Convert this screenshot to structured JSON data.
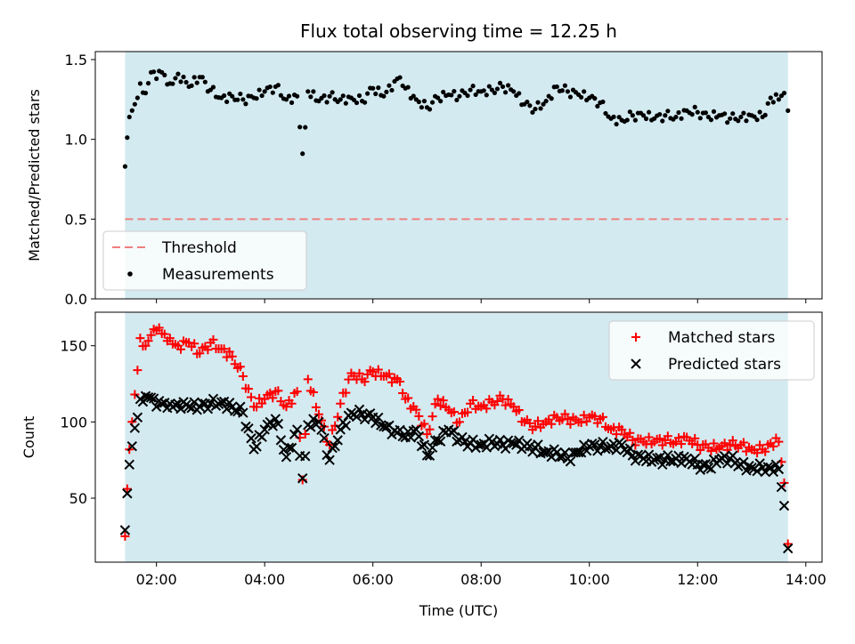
{
  "chart_data": {
    "title": "Flux total observing time = 12.25 h",
    "xlabel": "Time (UTC)",
    "x_ticks": [
      "02:00",
      "04:00",
      "06:00",
      "08:00",
      "10:00",
      "12:00",
      "14:00"
    ],
    "x_range_hours": [
      0.87,
      14.3
    ],
    "observing_window_hours": [
      1.42,
      13.67
    ],
    "colors": {
      "shade": "#d3eaf0",
      "matched": "#ff0000",
      "predicted": "#000000",
      "threshold": "#f08080",
      "measurements": "#000000"
    },
    "panels": [
      {
        "type": "scatter",
        "ylabel": "Matched/Predicted stars",
        "ylim": [
          0,
          1.55
        ],
        "y_ticks": [
          "0.0",
          "0.5",
          "1.0",
          "1.5"
        ],
        "legend_position": "lower-left",
        "threshold": 0.5,
        "legend": [
          {
            "label": "Threshold",
            "marker": "dashed-line"
          },
          {
            "label": "Measurements",
            "marker": "dot"
          }
        ],
        "series": [
          {
            "name": "Measurements",
            "anchors": [
              [
                1.42,
                0.83
              ],
              [
                1.5,
                1.14
              ],
              [
                1.6,
                1.22
              ],
              [
                1.7,
                1.35
              ],
              [
                1.8,
                1.29
              ],
              [
                1.9,
                1.42
              ],
              [
                2.0,
                1.38
              ],
              [
                2.1,
                1.42
              ],
              [
                2.25,
                1.35
              ],
              [
                2.4,
                1.41
              ],
              [
                2.6,
                1.33
              ],
              [
                2.8,
                1.39
              ],
              [
                3.0,
                1.31
              ],
              [
                3.2,
                1.26
              ],
              [
                3.4,
                1.27
              ],
              [
                3.6,
                1.25
              ],
              [
                3.8,
                1.26
              ],
              [
                4.0,
                1.3
              ],
              [
                4.2,
                1.33
              ],
              [
                4.4,
                1.25
              ],
              [
                4.6,
                1.27
              ],
              [
                4.7,
                0.91
              ],
              [
                4.8,
                1.3
              ],
              [
                5.0,
                1.24
              ],
              [
                5.2,
                1.27
              ],
              [
                5.4,
                1.25
              ],
              [
                5.6,
                1.26
              ],
              [
                5.8,
                1.24
              ],
              [
                6.0,
                1.32
              ],
              [
                6.2,
                1.27
              ],
              [
                6.45,
                1.38
              ],
              [
                6.6,
                1.32
              ],
              [
                6.8,
                1.25
              ],
              [
                7.0,
                1.2
              ],
              [
                7.2,
                1.26
              ],
              [
                7.4,
                1.28
              ],
              [
                7.6,
                1.27
              ],
              [
                7.8,
                1.31
              ],
              [
                8.0,
                1.3
              ],
              [
                8.2,
                1.31
              ],
              [
                8.4,
                1.33
              ],
              [
                8.6,
                1.3
              ],
              [
                8.8,
                1.22
              ],
              [
                9.0,
                1.19
              ],
              [
                9.2,
                1.24
              ],
              [
                9.4,
                1.33
              ],
              [
                9.6,
                1.3
              ],
              [
                9.8,
                1.28
              ],
              [
                10.0,
                1.26
              ],
              [
                10.2,
                1.23
              ],
              [
                10.4,
                1.13
              ],
              [
                10.6,
                1.12
              ],
              [
                10.8,
                1.15
              ],
              [
                11.0,
                1.15
              ],
              [
                11.2,
                1.13
              ],
              [
                11.4,
                1.15
              ],
              [
                11.6,
                1.14
              ],
              [
                11.8,
                1.18
              ],
              [
                12.0,
                1.17
              ],
              [
                12.2,
                1.14
              ],
              [
                12.4,
                1.15
              ],
              [
                12.6,
                1.13
              ],
              [
                12.8,
                1.14
              ],
              [
                13.0,
                1.15
              ],
              [
                13.2,
                1.14
              ],
              [
                13.35,
                1.26
              ],
              [
                13.5,
                1.25
              ],
              [
                13.6,
                1.29
              ],
              [
                13.67,
                1.18
              ]
            ]
          }
        ]
      },
      {
        "type": "scatter",
        "ylabel": "Count",
        "ylim": [
          8,
          172
        ],
        "y_ticks": [
          "50",
          "100",
          "150"
        ],
        "legend_position": "upper-right",
        "legend": [
          {
            "label": "Matched stars",
            "marker": "plus"
          },
          {
            "label": "Predicted stars",
            "marker": "x"
          }
        ],
        "series": [
          {
            "name": "Matched stars",
            "anchors": [
              [
                1.42,
                25
              ],
              [
                1.5,
                82
              ],
              [
                1.6,
                118
              ],
              [
                1.7,
                155
              ],
              [
                1.8,
                150
              ],
              [
                1.9,
                157
              ],
              [
                2.0,
                160
              ],
              [
                2.1,
                158
              ],
              [
                2.25,
                155
              ],
              [
                2.4,
                150
              ],
              [
                2.6,
                152
              ],
              [
                2.8,
                145
              ],
              [
                3.0,
                152
              ],
              [
                3.2,
                148
              ],
              [
                3.4,
                143
              ],
              [
                3.6,
                130
              ],
              [
                3.8,
                110
              ],
              [
                4.0,
                115
              ],
              [
                4.2,
                120
              ],
              [
                4.4,
                110
              ],
              [
                4.6,
                120
              ],
              [
                4.7,
                62
              ],
              [
                4.8,
                128
              ],
              [
                5.0,
                105
              ],
              [
                5.2,
                85
              ],
              [
                5.4,
                112
              ],
              [
                5.6,
                132
              ],
              [
                5.8,
                128
              ],
              [
                6.0,
                133
              ],
              [
                6.2,
                130
              ],
              [
                6.45,
                128
              ],
              [
                6.6,
                115
              ],
              [
                6.8,
                108
              ],
              [
                7.0,
                92
              ],
              [
                7.2,
                115
              ],
              [
                7.4,
                108
              ],
              [
                7.6,
                100
              ],
              [
                7.8,
                112
              ],
              [
                8.0,
                110
              ],
              [
                8.2,
                113
              ],
              [
                8.4,
                115
              ],
              [
                8.6,
                110
              ],
              [
                8.8,
                100
              ],
              [
                9.0,
                97
              ],
              [
                9.2,
                100
              ],
              [
                9.4,
                103
              ],
              [
                9.6,
                102
              ],
              [
                9.8,
                100
              ],
              [
                10.0,
                103
              ],
              [
                10.2,
                102
              ],
              [
                10.4,
                95
              ],
              [
                10.6,
                95
              ],
              [
                10.8,
                88
              ],
              [
                11.0,
                87
              ],
              [
                11.2,
                87
              ],
              [
                11.4,
                88
              ],
              [
                11.6,
                87
              ],
              [
                11.8,
                90
              ],
              [
                12.0,
                85
              ],
              [
                12.2,
                83
              ],
              [
                12.4,
                83
              ],
              [
                12.6,
                85
              ],
              [
                12.8,
                85
              ],
              [
                13.0,
                82
              ],
              [
                13.2,
                82
              ],
              [
                13.35,
                86
              ],
              [
                13.5,
                87
              ],
              [
                13.6,
                60
              ],
              [
                13.67,
                20
              ]
            ]
          },
          {
            "name": "Predicted stars",
            "anchors": [
              [
                1.42,
                29
              ],
              [
                1.5,
                72
              ],
              [
                1.6,
                96
              ],
              [
                1.7,
                115
              ],
              [
                1.8,
                117
              ],
              [
                1.9,
                116
              ],
              [
                2.0,
                110
              ],
              [
                2.1,
                112
              ],
              [
                2.25,
                112
              ],
              [
                2.4,
                112
              ],
              [
                2.6,
                110
              ],
              [
                2.8,
                110
              ],
              [
                3.0,
                112
              ],
              [
                3.2,
                113
              ],
              [
                3.4,
                110
              ],
              [
                3.6,
                106
              ],
              [
                3.8,
                82
              ],
              [
                4.0,
                95
              ],
              [
                4.2,
                102
              ],
              [
                4.4,
                77
              ],
              [
                4.6,
                95
              ],
              [
                4.7,
                63
              ],
              [
                4.8,
                98
              ],
              [
                5.0,
                100
              ],
              [
                5.2,
                75
              ],
              [
                5.4,
                95
              ],
              [
                5.6,
                106
              ],
              [
                5.8,
                105
              ],
              [
                6.0,
                103
              ],
              [
                6.2,
                97
              ],
              [
                6.45,
                93
              ],
              [
                6.6,
                90
              ],
              [
                6.8,
                95
              ],
              [
                7.0,
                78
              ],
              [
                7.2,
                88
              ],
              [
                7.4,
                95
              ],
              [
                7.6,
                88
              ],
              [
                7.8,
                86
              ],
              [
                8.0,
                85
              ],
              [
                8.2,
                87
              ],
              [
                8.4,
                85
              ],
              [
                8.6,
                86
              ],
              [
                8.8,
                84
              ],
              [
                9.0,
                83
              ],
              [
                9.2,
                80
              ],
              [
                9.4,
                80
              ],
              [
                9.6,
                76
              ],
              [
                9.8,
                80
              ],
              [
                10.0,
                84
              ],
              [
                10.2,
                84
              ],
              [
                10.4,
                84
              ],
              [
                10.6,
                85
              ],
              [
                10.8,
                78
              ],
              [
                11.0,
                76
              ],
              [
                11.2,
                75
              ],
              [
                11.4,
                75
              ],
              [
                11.6,
                76
              ],
              [
                11.8,
                76
              ],
              [
                12.0,
                72
              ],
              [
                12.2,
                70
              ],
              [
                12.4,
                75
              ],
              [
                12.6,
                76
              ],
              [
                12.8,
                72
              ],
              [
                13.0,
                70
              ],
              [
                13.2,
                70
              ],
              [
                13.35,
                70
              ],
              [
                13.5,
                69
              ],
              [
                13.6,
                45
              ],
              [
                13.67,
                17
              ]
            ]
          }
        ]
      }
    ]
  }
}
